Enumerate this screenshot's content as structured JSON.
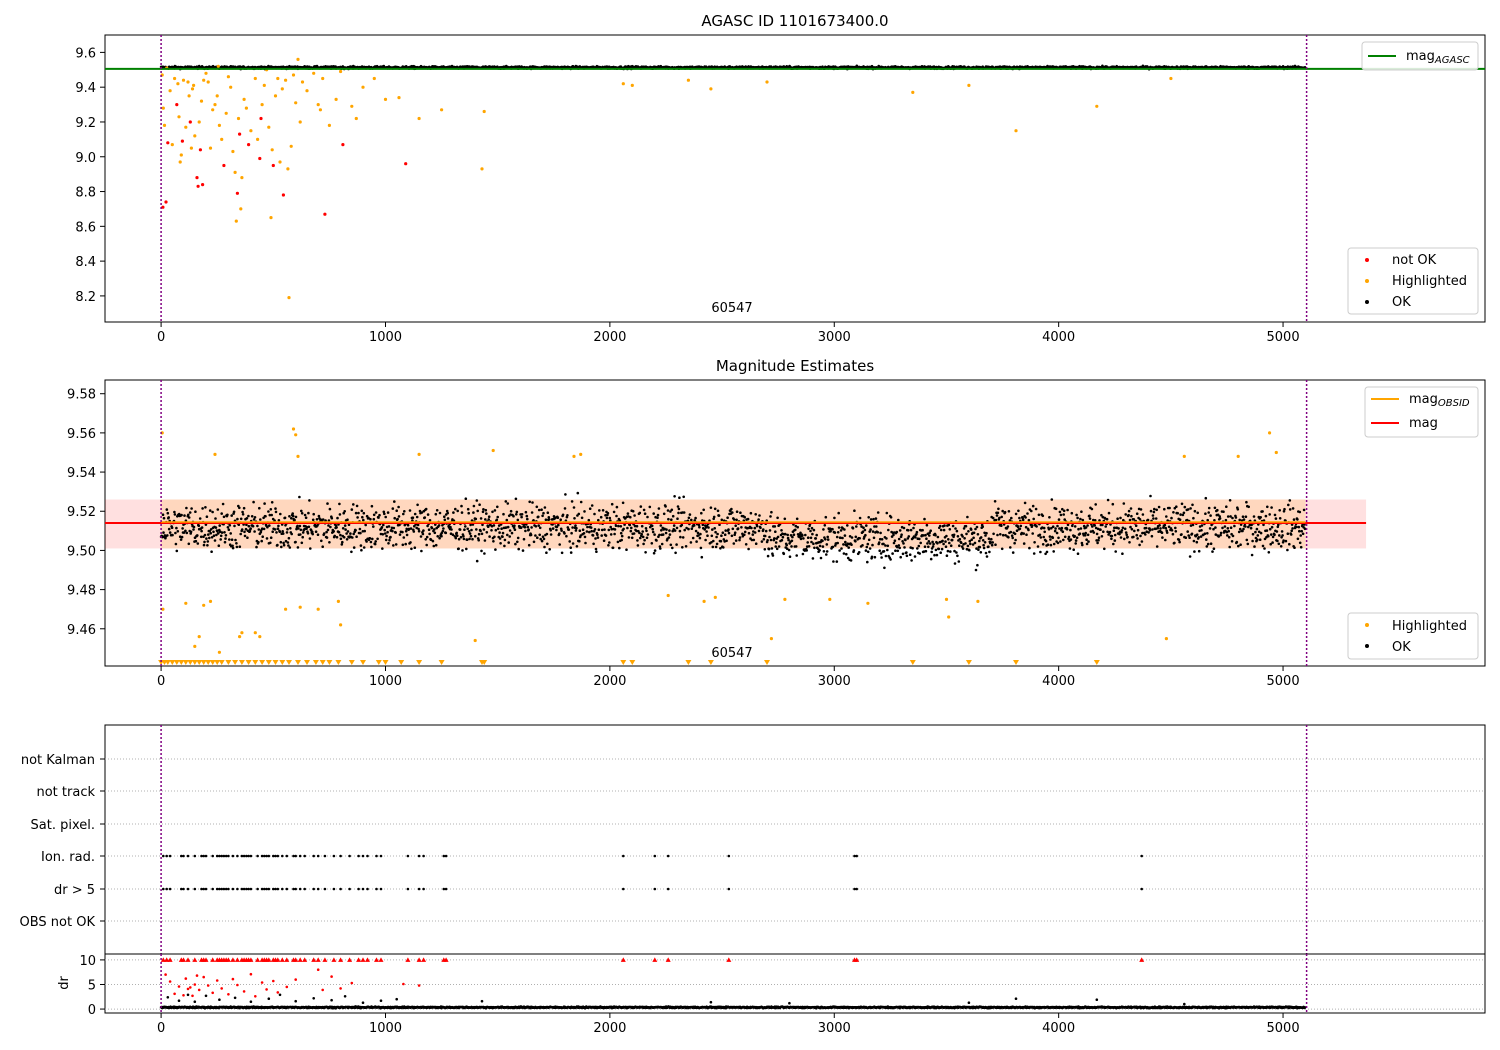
{
  "chart_data": [
    {
      "type": "scatter",
      "title": "AGASC ID 1101673400.0",
      "xlim": [
        -250,
        5900
      ],
      "ylim": [
        8.05,
        9.7
      ],
      "xticks": [
        0,
        1000,
        2000,
        3000,
        4000,
        5000
      ],
      "yticks": [
        8.2,
        8.4,
        8.6,
        8.8,
        9.0,
        9.2,
        9.4,
        9.6
      ],
      "grid": false,
      "annotation": "60547",
      "vlines": [
        0,
        5105
      ],
      "reference_line": {
        "name": "mag_AGASC",
        "label_main": "mag",
        "label_sub": "AGASC",
        "value": 9.505,
        "color": "#008000"
      },
      "legend_top": "top-right",
      "legend_bottom": "bottom-right",
      "legend_points": [
        {
          "label": "not OK",
          "color": "#ff0000"
        },
        {
          "label": "Highlighted",
          "color": "#ffa500"
        },
        {
          "label": "OK",
          "color": "#000000"
        }
      ],
      "ok_band": {
        "center": 9.513,
        "spread": 0.012,
        "x_range": [
          0,
          5100
        ]
      },
      "not_ok_points": [
        [
          8,
          8.71
        ],
        [
          22,
          8.74
        ],
        [
          30,
          9.08
        ],
        [
          70,
          9.3
        ],
        [
          95,
          9.09
        ],
        [
          130,
          9.2
        ],
        [
          160,
          8.88
        ],
        [
          165,
          8.83
        ],
        [
          175,
          9.04
        ],
        [
          185,
          8.84
        ],
        [
          280,
          8.95
        ],
        [
          340,
          8.79
        ],
        [
          350,
          9.13
        ],
        [
          390,
          9.07
        ],
        [
          440,
          8.99
        ],
        [
          445,
          9.22
        ],
        [
          500,
          8.95
        ],
        [
          545,
          8.78
        ],
        [
          730,
          8.67
        ],
        [
          810,
          9.07
        ],
        [
          1090,
          8.96
        ]
      ],
      "highlighted_points": [
        [
          5,
          9.47
        ],
        [
          10,
          9.28
        ],
        [
          15,
          9.18
        ],
        [
          25,
          9.51
        ],
        [
          40,
          9.38
        ],
        [
          50,
          9.07
        ],
        [
          60,
          9.45
        ],
        [
          75,
          9.42
        ],
        [
          80,
          9.23
        ],
        [
          85,
          8.97
        ],
        [
          90,
          9.01
        ],
        [
          100,
          9.44
        ],
        [
          110,
          9.17
        ],
        [
          120,
          9.43
        ],
        [
          125,
          9.35
        ],
        [
          135,
          9.05
        ],
        [
          140,
          9.39
        ],
        [
          145,
          9.41
        ],
        [
          150,
          9.12
        ],
        [
          170,
          9.2
        ],
        [
          180,
          9.32
        ],
        [
          190,
          9.44
        ],
        [
          200,
          9.48
        ],
        [
          210,
          9.43
        ],
        [
          220,
          9.05
        ],
        [
          230,
          9.27
        ],
        [
          240,
          9.3
        ],
        [
          250,
          9.35
        ],
        [
          255,
          9.52
        ],
        [
          260,
          9.18
        ],
        [
          270,
          9.1
        ],
        [
          290,
          9.25
        ],
        [
          300,
          9.46
        ],
        [
          310,
          9.4
        ],
        [
          320,
          9.03
        ],
        [
          330,
          8.91
        ],
        [
          335,
          8.63
        ],
        [
          345,
          9.22
        ],
        [
          355,
          8.7
        ],
        [
          360,
          8.88
        ],
        [
          370,
          9.33
        ],
        [
          380,
          9.28
        ],
        [
          400,
          9.15
        ],
        [
          420,
          9.45
        ],
        [
          430,
          9.1
        ],
        [
          450,
          9.3
        ],
        [
          460,
          9.41
        ],
        [
          470,
          9.5
        ],
        [
          480,
          9.17
        ],
        [
          490,
          8.65
        ],
        [
          495,
          9.04
        ],
        [
          510,
          9.35
        ],
        [
          520,
          9.45
        ],
        [
          530,
          8.97
        ],
        [
          540,
          9.39
        ],
        [
          555,
          9.44
        ],
        [
          565,
          8.93
        ],
        [
          570,
          8.19
        ],
        [
          580,
          9.06
        ],
        [
          590,
          9.47
        ],
        [
          600,
          9.31
        ],
        [
          610,
          9.56
        ],
        [
          620,
          9.2
        ],
        [
          630,
          9.43
        ],
        [
          650,
          9.38
        ],
        [
          680,
          9.48
        ],
        [
          700,
          9.3
        ],
        [
          710,
          9.27
        ],
        [
          720,
          9.45
        ],
        [
          750,
          9.18
        ],
        [
          780,
          9.33
        ],
        [
          800,
          9.49
        ],
        [
          850,
          9.29
        ],
        [
          870,
          9.22
        ],
        [
          900,
          9.4
        ],
        [
          950,
          9.45
        ],
        [
          1000,
          9.33
        ],
        [
          1060,
          9.34
        ],
        [
          1150,
          9.22
        ],
        [
          1250,
          9.27
        ],
        [
          1430,
          8.93
        ],
        [
          1440,
          9.26
        ],
        [
          2060,
          9.42
        ],
        [
          2100,
          9.41
        ],
        [
          2350,
          9.44
        ],
        [
          2450,
          9.39
        ],
        [
          2700,
          9.43
        ],
        [
          3350,
          9.37
        ],
        [
          3600,
          9.41
        ],
        [
          3810,
          9.15
        ],
        [
          4170,
          9.29
        ],
        [
          4500,
          9.45
        ]
      ]
    },
    {
      "type": "scatter",
      "title": "Magnitude Estimates",
      "xlim": [
        -250,
        5900
      ],
      "ylim": [
        9.441,
        9.587
      ],
      "xticks": [
        0,
        1000,
        2000,
        3000,
        4000,
        5000
      ],
      "yticks": [
        9.46,
        9.48,
        9.5,
        9.52,
        9.54,
        9.56,
        9.58
      ],
      "grid": false,
      "annotation": "60547",
      "vlines": [
        0,
        5105
      ],
      "lines": [
        {
          "name": "mag_OBSID",
          "label_main": "mag",
          "label_sub": "OBSID",
          "value": 9.514,
          "x_range": [
            0,
            5100
          ],
          "color": "#ffa500"
        },
        {
          "name": "mag",
          "label_main": "mag",
          "label_sub": "",
          "value": 9.514,
          "x_range": [
            -250,
            5370
          ],
          "color": "#ff0000"
        }
      ],
      "band": {
        "y_range": [
          9.501,
          9.526
        ],
        "x_range": [
          -250,
          5370
        ],
        "color": "#ffc0c0"
      },
      "legend_top": "top-right",
      "legend_bottom": "bottom-right",
      "legend_points": [
        {
          "label": "Highlighted",
          "color": "#ffa500"
        },
        {
          "label": "OK",
          "color": "#000000"
        }
      ],
      "ok_band": {
        "center": 9.512,
        "spread": 0.01,
        "x_range": [
          0,
          5100
        ]
      },
      "highlighted_points": [
        [
          5,
          9.56
        ],
        [
          8,
          9.47
        ],
        [
          110,
          9.473
        ],
        [
          150,
          9.451
        ],
        [
          170,
          9.456
        ],
        [
          190,
          9.472
        ],
        [
          220,
          9.474
        ],
        [
          240,
          9.549
        ],
        [
          260,
          9.448
        ],
        [
          350,
          9.456
        ],
        [
          360,
          9.458
        ],
        [
          420,
          9.458
        ],
        [
          440,
          9.456
        ],
        [
          555,
          9.47
        ],
        [
          590,
          9.562
        ],
        [
          600,
          9.559
        ],
        [
          610,
          9.548
        ],
        [
          620,
          9.471
        ],
        [
          700,
          9.47
        ],
        [
          790,
          9.474
        ],
        [
          800,
          9.462
        ],
        [
          1150,
          9.549
        ],
        [
          1400,
          9.454
        ],
        [
          1480,
          9.551
        ],
        [
          1840,
          9.548
        ],
        [
          1870,
          9.549
        ],
        [
          2260,
          9.477
        ],
        [
          2420,
          9.474
        ],
        [
          2470,
          9.476
        ],
        [
          2720,
          9.455
        ],
        [
          2780,
          9.475
        ],
        [
          2980,
          9.475
        ],
        [
          3150,
          9.473
        ],
        [
          3500,
          9.475
        ],
        [
          3510,
          9.466
        ],
        [
          3640,
          9.474
        ],
        [
          4480,
          9.455
        ],
        [
          4560,
          9.548
        ],
        [
          4800,
          9.548
        ],
        [
          4940,
          9.56
        ],
        [
          4970,
          9.55
        ]
      ],
      "clipped_markers_x": [
        0,
        15,
        30,
        50,
        70,
        90,
        110,
        130,
        150,
        170,
        190,
        210,
        230,
        250,
        270,
        300,
        330,
        360,
        390,
        420,
        450,
        480,
        510,
        540,
        570,
        610,
        650,
        690,
        720,
        750,
        790,
        850,
        900,
        970,
        1000,
        1070,
        1150,
        1250,
        1430,
        1440,
        2060,
        2100,
        2350,
        2450,
        2700,
        3350,
        3600,
        3810,
        4170
      ]
    },
    {
      "type": "scatter",
      "title": "",
      "xlim": [
        -250,
        5900
      ],
      "vlines": [
        0,
        5105
      ],
      "flag_labels": [
        "not Kalman",
        "not track",
        "Sat. pixel.",
        "Ion. rad.",
        "dr > 5",
        "OBS not OK"
      ],
      "flag_grid": true,
      "flag_points_x": [
        10,
        25,
        40,
        90,
        100,
        120,
        150,
        180,
        190,
        200,
        230,
        250,
        260,
        270,
        280,
        290,
        300,
        320,
        340,
        360,
        370,
        380,
        390,
        400,
        430,
        450,
        460,
        470,
        480,
        500,
        510,
        520,
        540,
        560,
        590,
        600,
        620,
        640,
        680,
        700,
        730,
        770,
        800,
        840,
        880,
        900,
        920,
        960,
        980,
        1100,
        1150,
        1170,
        1260,
        1270,
        2060,
        2200,
        2260,
        2530,
        3090,
        3100,
        4370
      ],
      "dr_ylabel": "dr",
      "dr_ylim": [
        -0.8,
        11.2
      ],
      "dr_yticks": [
        0,
        5,
        10
      ],
      "dr_xticks": [
        0,
        1000,
        2000,
        3000,
        4000,
        5000
      ],
      "dr_red_capped_x": [
        10,
        25,
        40,
        90,
        100,
        120,
        150,
        180,
        190,
        200,
        230,
        250,
        260,
        270,
        280,
        290,
        300,
        320,
        340,
        360,
        370,
        380,
        390,
        400,
        430,
        450,
        460,
        470,
        480,
        500,
        510,
        520,
        540,
        560,
        590,
        600,
        620,
        640,
        680,
        700,
        730,
        770,
        800,
        840,
        880,
        900,
        920,
        960,
        980,
        1100,
        1150,
        1170,
        1260,
        1270,
        2060,
        2200,
        2260,
        2530,
        3090,
        3100,
        4370
      ],
      "dr_red_points": [
        [
          20,
          7.0
        ],
        [
          40,
          5.6
        ],
        [
          60,
          3.1
        ],
        [
          80,
          4.6
        ],
        [
          100,
          2.8
        ],
        [
          110,
          6.2
        ],
        [
          120,
          4.1
        ],
        [
          130,
          4.4
        ],
        [
          140,
          2.7
        ],
        [
          150,
          5.0
        ],
        [
          160,
          6.8
        ],
        [
          170,
          3.9
        ],
        [
          190,
          6.5
        ],
        [
          210,
          4.8
        ],
        [
          230,
          3.3
        ],
        [
          250,
          5.8
        ],
        [
          270,
          4.2
        ],
        [
          300,
          3.0
        ],
        [
          320,
          6.1
        ],
        [
          340,
          4.9
        ],
        [
          370,
          3.6
        ],
        [
          400,
          7.1
        ],
        [
          420,
          2.6
        ],
        [
          450,
          5.4
        ],
        [
          470,
          4.0
        ],
        [
          500,
          5.7
        ],
        [
          520,
          3.4
        ],
        [
          560,
          4.5
        ],
        [
          600,
          6.0
        ],
        [
          700,
          8.0
        ],
        [
          720,
          3.9
        ],
        [
          760,
          6.6
        ],
        [
          800,
          4.2
        ],
        [
          850,
          5.3
        ],
        [
          1080,
          5.1
        ],
        [
          1150,
          4.8
        ]
      ],
      "dr_black_points": [
        [
          30,
          2.4
        ],
        [
          80,
          1.7
        ],
        [
          120,
          2.9
        ],
        [
          150,
          1.5
        ],
        [
          200,
          2.7
        ],
        [
          260,
          1.9
        ],
        [
          330,
          2.3
        ],
        [
          400,
          1.5
        ],
        [
          480,
          2.1
        ],
        [
          530,
          2.9
        ],
        [
          600,
          1.6
        ],
        [
          680,
          2.2
        ],
        [
          760,
          1.8
        ],
        [
          820,
          2.6
        ],
        [
          900,
          1.3
        ],
        [
          980,
          1.7
        ],
        [
          1050,
          2.0
        ],
        [
          1430,
          1.6
        ],
        [
          2450,
          1.4
        ],
        [
          2800,
          1.2
        ],
        [
          3600,
          1.3
        ],
        [
          3810,
          2.1
        ],
        [
          4170,
          1.9
        ],
        [
          4560,
          1.0
        ]
      ],
      "dr_baseline": {
        "center": 0.35,
        "spread": 0.3,
        "x_range": [
          0,
          5100
        ]
      }
    }
  ]
}
